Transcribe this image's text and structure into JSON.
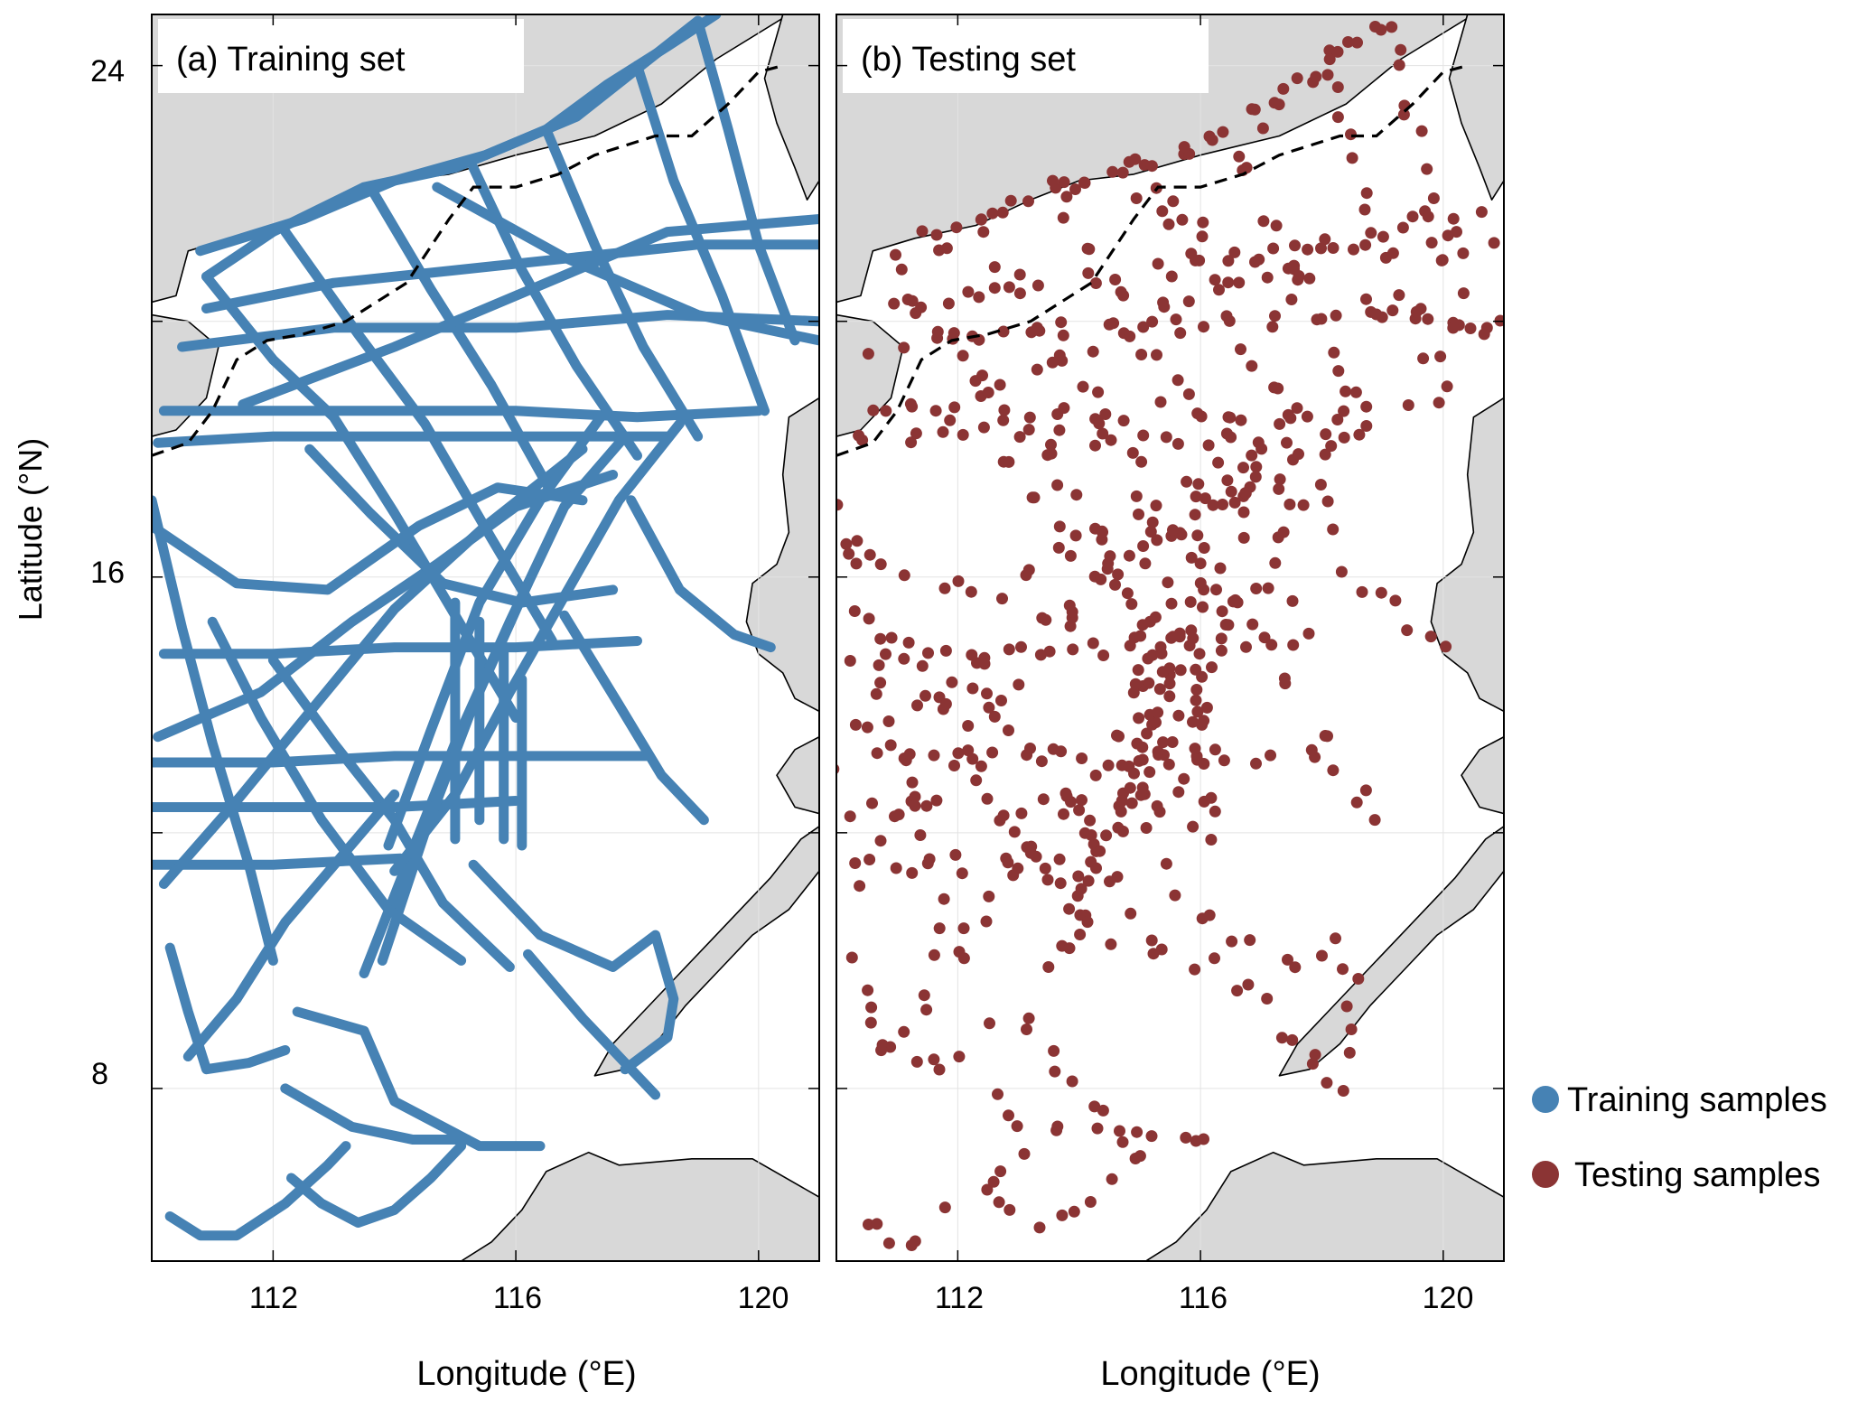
{
  "colors": {
    "land": "#d8d8d8",
    "coast": "#000000",
    "training": "#4682b4",
    "testing": "#8b3434",
    "grid": "#e3e3e3",
    "boundary": "#000000"
  },
  "axes": {
    "ylabel": "Latitude (°N)",
    "xlabel": "Longitude (°E)",
    "yticks": [
      "24",
      "16",
      "8"
    ],
    "xticks": [
      "112",
      "116",
      "120"
    ]
  },
  "panels": [
    {
      "id": "a",
      "title": "(a) Training set",
      "series": "training"
    },
    {
      "id": "b",
      "title": "(b) Testing set",
      "series": "testing"
    }
  ],
  "legend": {
    "training": "Training samples",
    "testing": "Testing samples"
  },
  "chart_data": {
    "type": "scatter",
    "xlim": [
      110,
      121
    ],
    "ylim": [
      5.3,
      24.8
    ],
    "xticks": [
      112,
      116,
      120
    ],
    "yticks": [
      8,
      16,
      24
    ],
    "grid": true,
    "legend_position": "right",
    "series": [
      {
        "name": "Training samples",
        "style": "dense ship-track lines",
        "tracks": [
          [
            [
              110.9,
              20.7
            ],
            [
              112,
              21.4
            ],
            [
              113.5,
              22.1
            ],
            [
              115,
              22.4
            ],
            [
              116.5,
              23
            ],
            [
              117.5,
              23.7
            ],
            [
              118.5,
              24.3
            ],
            [
              119.3,
              24.8
            ]
          ],
          [
            [
              110.8,
              21.1
            ],
            [
              112.5,
              21.6
            ],
            [
              114,
              22.2
            ],
            [
              115.5,
              22.6
            ],
            [
              117,
              23.2
            ],
            [
              118.2,
              24.1
            ],
            [
              119,
              24.7
            ]
          ],
          [
            [
              110.9,
              20.2
            ],
            [
              113,
              20.6
            ],
            [
              115,
              20.8
            ],
            [
              117,
              21
            ],
            [
              119,
              21.2
            ],
            [
              121,
              21.2
            ]
          ],
          [
            [
              110.5,
              19.6
            ],
            [
              113,
              19.9
            ],
            [
              116,
              19.9
            ],
            [
              118.5,
              20.1
            ],
            [
              121,
              20
            ]
          ],
          [
            [
              110.2,
              18.6
            ],
            [
              112,
              18.6
            ],
            [
              114,
              18.6
            ],
            [
              116,
              18.6
            ],
            [
              118,
              18.5
            ],
            [
              120,
              18.6
            ]
          ],
          [
            [
              110.1,
              18.1
            ],
            [
              112,
              18.2
            ],
            [
              114,
              18.2
            ],
            [
              116,
              18.2
            ],
            [
              118.5,
              18.2
            ]
          ],
          [
            [
              110.9,
              20.7
            ],
            [
              112,
              19.4
            ],
            [
              113,
              18.5
            ],
            [
              114,
              17
            ],
            [
              115,
              15.4
            ],
            [
              116,
              13.8
            ]
          ],
          [
            [
              112.2,
              21.4
            ],
            [
              113.4,
              19.8
            ],
            [
              114.5,
              18.4
            ],
            [
              115.6,
              16.6
            ],
            [
              116.6,
              15
            ]
          ],
          [
            [
              113.6,
              22.1
            ],
            [
              114.6,
              20.5
            ],
            [
              115.6,
              19
            ],
            [
              116.6,
              17.3
            ]
          ],
          [
            [
              115.3,
              22.4
            ],
            [
              116.1,
              20.8
            ],
            [
              117,
              19.3
            ],
            [
              118,
              17.9
            ]
          ],
          [
            [
              116.5,
              23
            ],
            [
              117.3,
              21.2
            ],
            [
              118.1,
              19.6
            ],
            [
              119,
              18.2
            ]
          ],
          [
            [
              118,
              24
            ],
            [
              118.6,
              22.2
            ],
            [
              119.4,
              20.4
            ],
            [
              120.1,
              18.6
            ]
          ],
          [
            [
              119,
              24.7
            ],
            [
              119.5,
              23
            ],
            [
              120,
              21.2
            ],
            [
              120.6,
              19.7
            ]
          ],
          [
            [
              121,
              21.6
            ],
            [
              118.5,
              21.4
            ],
            [
              116.5,
              20.6
            ],
            [
              114,
              19.6
            ],
            [
              111.5,
              18.7
            ]
          ],
          [
            [
              121,
              19.7
            ],
            [
              119,
              20.1
            ],
            [
              116.8,
              21
            ],
            [
              114.7,
              22.1
            ]
          ],
          [
            [
              110,
              17.2
            ],
            [
              110.5,
              15.2
            ],
            [
              111,
              13.4
            ],
            [
              111.6,
              11.5
            ],
            [
              112,
              10
            ]
          ],
          [
            [
              110.2,
              14.8
            ],
            [
              112,
              14.8
            ],
            [
              114,
              14.9
            ],
            [
              116,
              14.9
            ],
            [
              118,
              15
            ]
          ],
          [
            [
              110,
              13.1
            ],
            [
              112,
              13.1
            ],
            [
              114,
              13.2
            ],
            [
              116,
              13.2
            ],
            [
              118.2,
              13.2
            ]
          ],
          [
            [
              110,
              12.4
            ],
            [
              112,
              12.4
            ],
            [
              114,
              12.4
            ],
            [
              116,
              12.5
            ]
          ],
          [
            [
              110,
              11.5
            ],
            [
              112,
              11.5
            ],
            [
              114.1,
              11.6
            ]
          ],
          [
            [
              110.1,
              13.5
            ],
            [
              111.8,
              14.2
            ],
            [
              113.3,
              15.3
            ],
            [
              114.7,
              16.2
            ],
            [
              116,
              17.1
            ],
            [
              117.6,
              17.6
            ]
          ],
          [
            [
              110.2,
              11.2
            ],
            [
              111.4,
              12.5
            ],
            [
              112.7,
              14
            ],
            [
              114,
              15.5
            ],
            [
              115.5,
              16.8
            ],
            [
              117.1,
              18
            ]
          ],
          [
            [
              113.5,
              9.8
            ],
            [
              114.2,
              11.5
            ],
            [
              115,
              13.4
            ],
            [
              115.9,
              15.3
            ],
            [
              116.8,
              17.1
            ],
            [
              117.8,
              18.2
            ]
          ],
          [
            [
              113.9,
              11.8
            ],
            [
              114.6,
              13.6
            ],
            [
              115.4,
              15.6
            ],
            [
              116.4,
              17.2
            ],
            [
              117.4,
              18.5
            ]
          ],
          [
            [
              114,
              11.4
            ],
            [
              115,
              12.6
            ],
            [
              115.9,
              14.2
            ],
            [
              116.8,
              15.7
            ],
            [
              117.7,
              17.2
            ],
            [
              118.7,
              18.4
            ]
          ],
          [
            [
              113.8,
              10
            ],
            [
              114.5,
              12
            ],
            [
              115.3,
              14
            ],
            [
              116.2,
              15.9
            ]
          ],
          [
            [
              115,
              15.6
            ],
            [
              115,
              14.3
            ],
            [
              115,
              13
            ],
            [
              115,
              11.9
            ]
          ],
          [
            [
              115.4,
              15.3
            ],
            [
              115.4,
              13.8
            ],
            [
              115.4,
              12.2
            ]
          ],
          [
            [
              115.8,
              14.9
            ],
            [
              115.8,
              13.4
            ],
            [
              115.8,
              11.9
            ]
          ],
          [
            [
              116.1,
              14.4
            ],
            [
              116.1,
              13.1
            ],
            [
              116.1,
              11.8
            ]
          ],
          [
            [
              112,
              14.7
            ],
            [
              113,
              13.4
            ],
            [
              114,
              12.2
            ],
            [
              114.8,
              10.9
            ],
            [
              115.9,
              9.9
            ]
          ],
          [
            [
              111,
              15.3
            ],
            [
              111.8,
              13.8
            ],
            [
              112.8,
              12.2
            ],
            [
              113.9,
              10.8
            ],
            [
              115.1,
              10
            ]
          ],
          [
            [
              110.6,
              8.5
            ],
            [
              111.4,
              9.4
            ],
            [
              112.2,
              10.6
            ],
            [
              113.1,
              11.6
            ],
            [
              114,
              12.6
            ]
          ],
          [
            [
              110.3,
              10.2
            ],
            [
              110.6,
              9.2
            ],
            [
              110.9,
              8.3
            ],
            [
              111.6,
              8.4
            ],
            [
              112.2,
              8.6
            ]
          ],
          [
            [
              112.4,
              9.2
            ],
            [
              113.5,
              8.9
            ],
            [
              114,
              7.8
            ],
            [
              115.4,
              7.1
            ],
            [
              116.4,
              7.1
            ]
          ],
          [
            [
              112.2,
              8
            ],
            [
              113.3,
              7.4
            ],
            [
              114.3,
              7.2
            ],
            [
              115.2,
              7.2
            ]
          ],
          [
            [
              110.3,
              6
            ],
            [
              110.8,
              5.7
            ],
            [
              111.4,
              5.7
            ],
            [
              112.2,
              6.2
            ],
            [
              112.9,
              6.8
            ],
            [
              113.2,
              7.1
            ]
          ],
          [
            [
              112.3,
              6.6
            ],
            [
              112.8,
              6.2
            ],
            [
              113.4,
              5.9
            ],
            [
              114,
              6.1
            ],
            [
              114.6,
              6.6
            ],
            [
              115.1,
              7.1
            ]
          ],
          [
            [
              115.3,
              11.5
            ],
            [
              116.4,
              10.4
            ],
            [
              117.6,
              9.9
            ],
            [
              118.3,
              10.4
            ],
            [
              118.6,
              9.4
            ],
            [
              118.5,
              8.8
            ],
            [
              117.8,
              8.3
            ]
          ],
          [
            [
              116.2,
              10.1
            ],
            [
              117.1,
              9.1
            ],
            [
              117.6,
              8.6
            ],
            [
              118.3,
              7.9
            ]
          ],
          [
            [
              112.6,
              18
            ],
            [
              113.6,
              17
            ],
            [
              114.8,
              15.9
            ],
            [
              116.1,
              15.6
            ],
            [
              117.6,
              15.8
            ]
          ],
          [
            [
              110,
              16.8
            ],
            [
              111.4,
              15.9
            ],
            [
              112.9,
              15.8
            ],
            [
              114.4,
              16.8
            ],
            [
              115.7,
              17.4
            ],
            [
              117.1,
              17.2
            ]
          ],
          [
            [
              116.8,
              15.4
            ],
            [
              117.7,
              14
            ],
            [
              118.4,
              12.9
            ],
            [
              119.1,
              12.2
            ]
          ],
          [
            [
              117.9,
              17.2
            ],
            [
              118.7,
              15.8
            ],
            [
              119.6,
              15.1
            ],
            [
              120.2,
              14.9
            ]
          ]
        ]
      },
      {
        "name": "Testing samples",
        "style": "sparse scattered points sampled along the same tracks",
        "count": "≈1500"
      }
    ]
  }
}
